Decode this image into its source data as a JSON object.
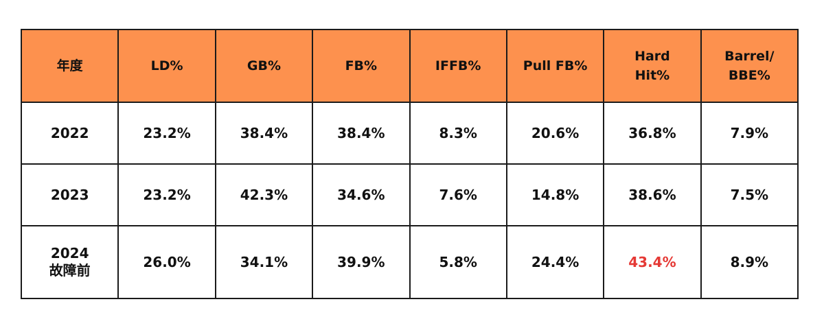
{
  "table": {
    "headers": [
      [
        "年度"
      ],
      [
        "LD%"
      ],
      [
        "GB%"
      ],
      [
        "FB%"
      ],
      [
        "IFFB%"
      ],
      [
        "Pull FB%"
      ],
      [
        "Hard",
        "Hit%"
      ],
      [
        "Barrel/",
        "BBE%"
      ]
    ],
    "rows": [
      {
        "year": [
          "2022"
        ],
        "values": [
          "23.2%",
          "38.4%",
          "38.4%",
          "8.3%",
          "20.6%",
          "36.8%",
          "7.9%"
        ]
      },
      {
        "year": [
          "2023"
        ],
        "values": [
          "23.2%",
          "42.3%",
          "34.6%",
          "7.6%",
          "14.8%",
          "38.6%",
          "7.5%"
        ]
      },
      {
        "year": [
          "2024",
          "故障前"
        ],
        "values": [
          "26.0%",
          "34.1%",
          "39.9%",
          "5.8%",
          "24.4%",
          "43.4%",
          "8.9%"
        ]
      }
    ],
    "highlight": {
      "row": 2,
      "col": 5,
      "color": "#e53935"
    }
  },
  "colors": {
    "header_bg": "#fd914e",
    "border": "#1a1a1a",
    "text": "#111111"
  }
}
